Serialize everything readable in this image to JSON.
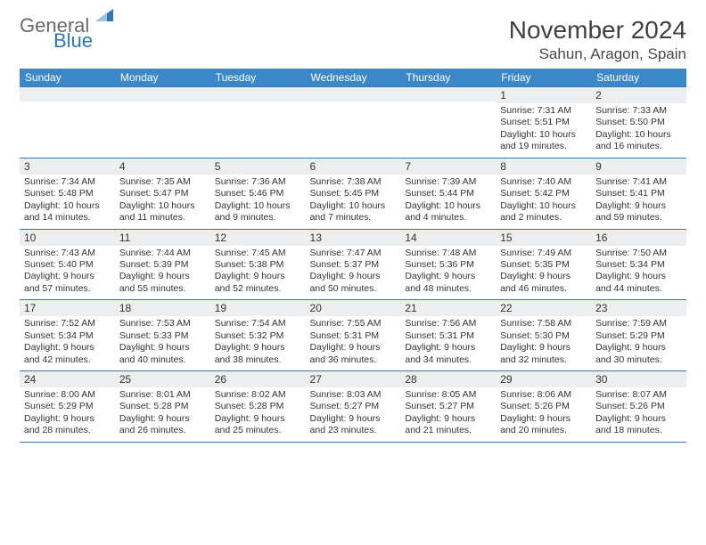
{
  "logo": {
    "text1": "General",
    "text2": "Blue"
  },
  "title": "November 2024",
  "location": "Sahun, Aragon, Spain",
  "colors": {
    "header_bg": "#3b87c8",
    "header_text": "#ffffff",
    "row_divider": "#2f77b8",
    "daynum_bg": "#eceeef",
    "body_text": "#333333",
    "logo_gray": "#6a6a6a",
    "logo_blue": "#2f77b8",
    "page_bg": "#ffffff"
  },
  "weekdays": [
    "Sunday",
    "Monday",
    "Tuesday",
    "Wednesday",
    "Thursday",
    "Friday",
    "Saturday"
  ],
  "weeks": [
    [
      {
        "n": "",
        "l": [
          "",
          "",
          "",
          ""
        ]
      },
      {
        "n": "",
        "l": [
          "",
          "",
          "",
          ""
        ]
      },
      {
        "n": "",
        "l": [
          "",
          "",
          "",
          ""
        ]
      },
      {
        "n": "",
        "l": [
          "",
          "",
          "",
          ""
        ]
      },
      {
        "n": "",
        "l": [
          "",
          "",
          "",
          ""
        ]
      },
      {
        "n": "1",
        "l": [
          "Sunrise: 7:31 AM",
          "Sunset: 5:51 PM",
          "Daylight: 10 hours",
          "and 19 minutes."
        ]
      },
      {
        "n": "2",
        "l": [
          "Sunrise: 7:33 AM",
          "Sunset: 5:50 PM",
          "Daylight: 10 hours",
          "and 16 minutes."
        ]
      }
    ],
    [
      {
        "n": "3",
        "l": [
          "Sunrise: 7:34 AM",
          "Sunset: 5:48 PM",
          "Daylight: 10 hours",
          "and 14 minutes."
        ]
      },
      {
        "n": "4",
        "l": [
          "Sunrise: 7:35 AM",
          "Sunset: 5:47 PM",
          "Daylight: 10 hours",
          "and 11 minutes."
        ]
      },
      {
        "n": "5",
        "l": [
          "Sunrise: 7:36 AM",
          "Sunset: 5:46 PM",
          "Daylight: 10 hours",
          "and 9 minutes."
        ]
      },
      {
        "n": "6",
        "l": [
          "Sunrise: 7:38 AM",
          "Sunset: 5:45 PM",
          "Daylight: 10 hours",
          "and 7 minutes."
        ]
      },
      {
        "n": "7",
        "l": [
          "Sunrise: 7:39 AM",
          "Sunset: 5:44 PM",
          "Daylight: 10 hours",
          "and 4 minutes."
        ]
      },
      {
        "n": "8",
        "l": [
          "Sunrise: 7:40 AM",
          "Sunset: 5:42 PM",
          "Daylight: 10 hours",
          "and 2 minutes."
        ]
      },
      {
        "n": "9",
        "l": [
          "Sunrise: 7:41 AM",
          "Sunset: 5:41 PM",
          "Daylight: 9 hours",
          "and 59 minutes."
        ]
      }
    ],
    [
      {
        "n": "10",
        "l": [
          "Sunrise: 7:43 AM",
          "Sunset: 5:40 PM",
          "Daylight: 9 hours",
          "and 57 minutes."
        ]
      },
      {
        "n": "11",
        "l": [
          "Sunrise: 7:44 AM",
          "Sunset: 5:39 PM",
          "Daylight: 9 hours",
          "and 55 minutes."
        ]
      },
      {
        "n": "12",
        "l": [
          "Sunrise: 7:45 AM",
          "Sunset: 5:38 PM",
          "Daylight: 9 hours",
          "and 52 minutes."
        ]
      },
      {
        "n": "13",
        "l": [
          "Sunrise: 7:47 AM",
          "Sunset: 5:37 PM",
          "Daylight: 9 hours",
          "and 50 minutes."
        ]
      },
      {
        "n": "14",
        "l": [
          "Sunrise: 7:48 AM",
          "Sunset: 5:36 PM",
          "Daylight: 9 hours",
          "and 48 minutes."
        ]
      },
      {
        "n": "15",
        "l": [
          "Sunrise: 7:49 AM",
          "Sunset: 5:35 PM",
          "Daylight: 9 hours",
          "and 46 minutes."
        ]
      },
      {
        "n": "16",
        "l": [
          "Sunrise: 7:50 AM",
          "Sunset: 5:34 PM",
          "Daylight: 9 hours",
          "and 44 minutes."
        ]
      }
    ],
    [
      {
        "n": "17",
        "l": [
          "Sunrise: 7:52 AM",
          "Sunset: 5:34 PM",
          "Daylight: 9 hours",
          "and 42 minutes."
        ]
      },
      {
        "n": "18",
        "l": [
          "Sunrise: 7:53 AM",
          "Sunset: 5:33 PM",
          "Daylight: 9 hours",
          "and 40 minutes."
        ]
      },
      {
        "n": "19",
        "l": [
          "Sunrise: 7:54 AM",
          "Sunset: 5:32 PM",
          "Daylight: 9 hours",
          "and 38 minutes."
        ]
      },
      {
        "n": "20",
        "l": [
          "Sunrise: 7:55 AM",
          "Sunset: 5:31 PM",
          "Daylight: 9 hours",
          "and 36 minutes."
        ]
      },
      {
        "n": "21",
        "l": [
          "Sunrise: 7:56 AM",
          "Sunset: 5:31 PM",
          "Daylight: 9 hours",
          "and 34 minutes."
        ]
      },
      {
        "n": "22",
        "l": [
          "Sunrise: 7:58 AM",
          "Sunset: 5:30 PM",
          "Daylight: 9 hours",
          "and 32 minutes."
        ]
      },
      {
        "n": "23",
        "l": [
          "Sunrise: 7:59 AM",
          "Sunset: 5:29 PM",
          "Daylight: 9 hours",
          "and 30 minutes."
        ]
      }
    ],
    [
      {
        "n": "24",
        "l": [
          "Sunrise: 8:00 AM",
          "Sunset: 5:29 PM",
          "Daylight: 9 hours",
          "and 28 minutes."
        ]
      },
      {
        "n": "25",
        "l": [
          "Sunrise: 8:01 AM",
          "Sunset: 5:28 PM",
          "Daylight: 9 hours",
          "and 26 minutes."
        ]
      },
      {
        "n": "26",
        "l": [
          "Sunrise: 8:02 AM",
          "Sunset: 5:28 PM",
          "Daylight: 9 hours",
          "and 25 minutes."
        ]
      },
      {
        "n": "27",
        "l": [
          "Sunrise: 8:03 AM",
          "Sunset: 5:27 PM",
          "Daylight: 9 hours",
          "and 23 minutes."
        ]
      },
      {
        "n": "28",
        "l": [
          "Sunrise: 8:05 AM",
          "Sunset: 5:27 PM",
          "Daylight: 9 hours",
          "and 21 minutes."
        ]
      },
      {
        "n": "29",
        "l": [
          "Sunrise: 8:06 AM",
          "Sunset: 5:26 PM",
          "Daylight: 9 hours",
          "and 20 minutes."
        ]
      },
      {
        "n": "30",
        "l": [
          "Sunrise: 8:07 AM",
          "Sunset: 5:26 PM",
          "Daylight: 9 hours",
          "and 18 minutes."
        ]
      }
    ]
  ]
}
